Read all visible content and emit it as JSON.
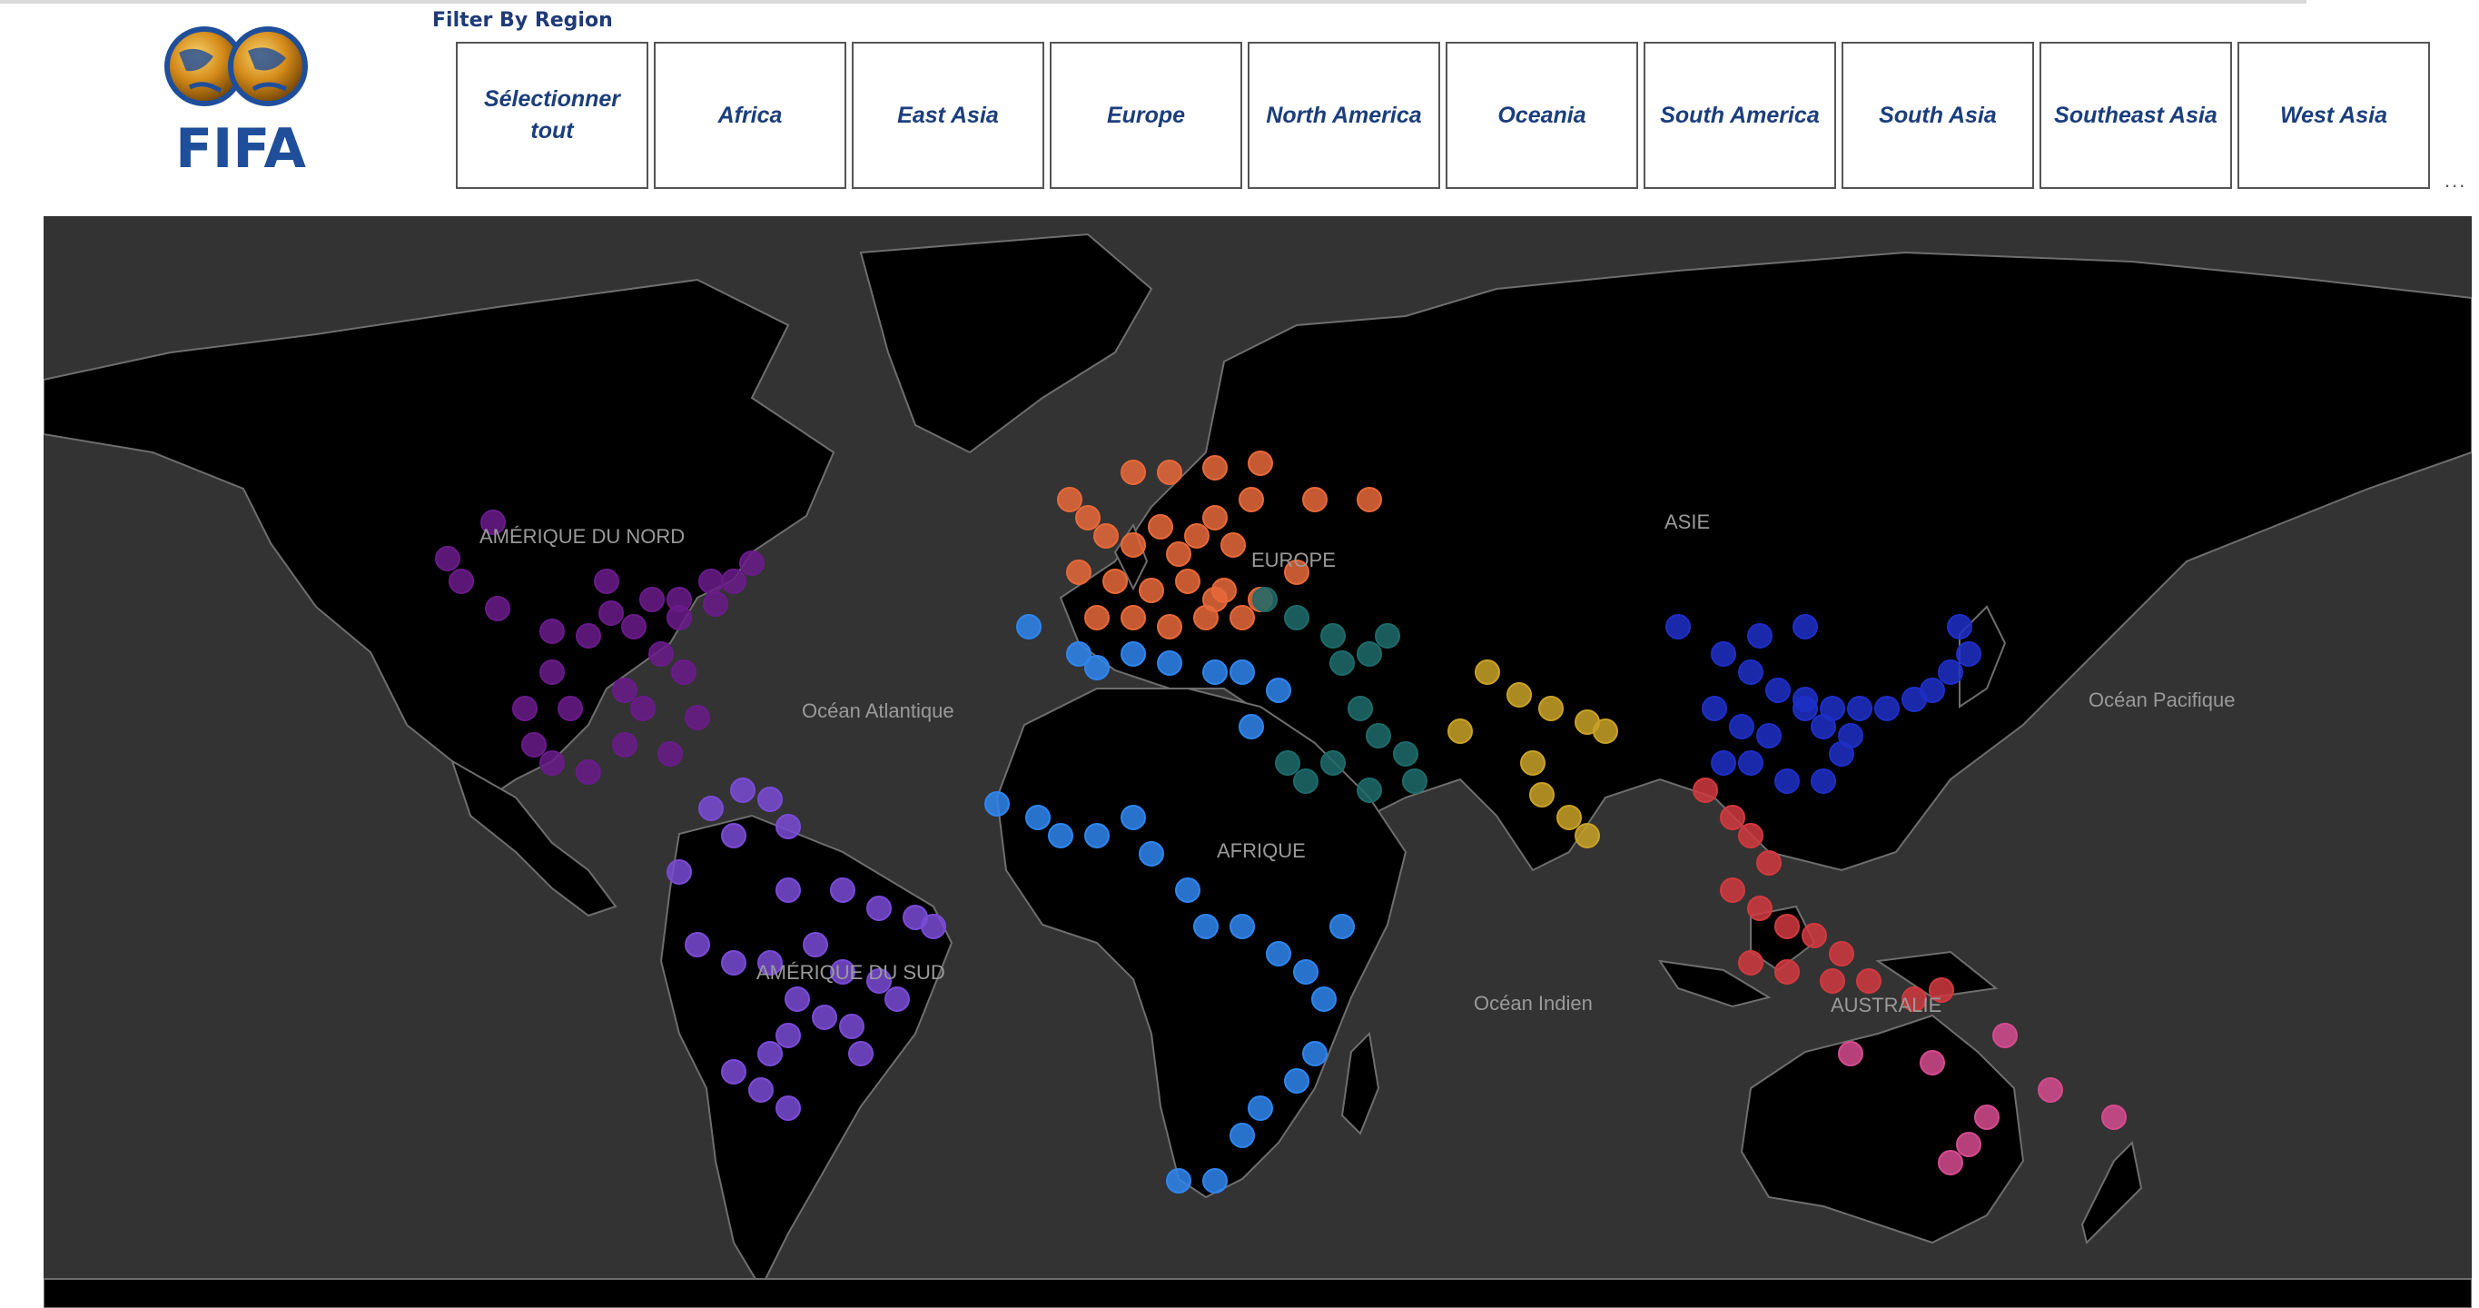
{
  "logo": {
    "text": "FIFA"
  },
  "filter": {
    "title": "Filter By Region",
    "buttons": [
      {
        "label": "Sélectionner tout",
        "key": "all"
      },
      {
        "label": "Africa",
        "key": "africa"
      },
      {
        "label": "East Asia",
        "key": "east-asia"
      },
      {
        "label": "Europe",
        "key": "europe"
      },
      {
        "label": "North America",
        "key": "north-america"
      },
      {
        "label": "Oceania",
        "key": "oceania"
      },
      {
        "label": "South America",
        "key": "south-america"
      },
      {
        "label": "South Asia",
        "key": "south-asia"
      },
      {
        "label": "Southeast Asia",
        "key": "southeast-asia"
      },
      {
        "label": "West Asia",
        "key": "west-asia"
      }
    ],
    "more_glyph": "..."
  },
  "map": {
    "labels": {
      "north_america": "AMÉRIQUE DU NORD",
      "atlantic": "Océan Atlantique",
      "europe": "EUROPE",
      "asia": "ASIE",
      "pacific": "Océan Pacifique",
      "africa": "AFRIQUE",
      "south_america": "AMÉRIQUE DU SUD",
      "indian": "Océan Indien",
      "australia": "AUSTRALIE"
    },
    "colors": {
      "ocean": "#333333",
      "land": "#000000",
      "borders": "#6e6e6e",
      "north_america": "#6a1b8a",
      "south_america": "#7a4bd6",
      "europe": "#e8693a",
      "africa": "#2f86f0",
      "west_asia": "#1f6b6b",
      "south_asia": "#c9a227",
      "east_asia": "#1e2fc8",
      "southeast_asia": "#d13a3f",
      "oceania": "#d64b8f"
    }
  }
}
